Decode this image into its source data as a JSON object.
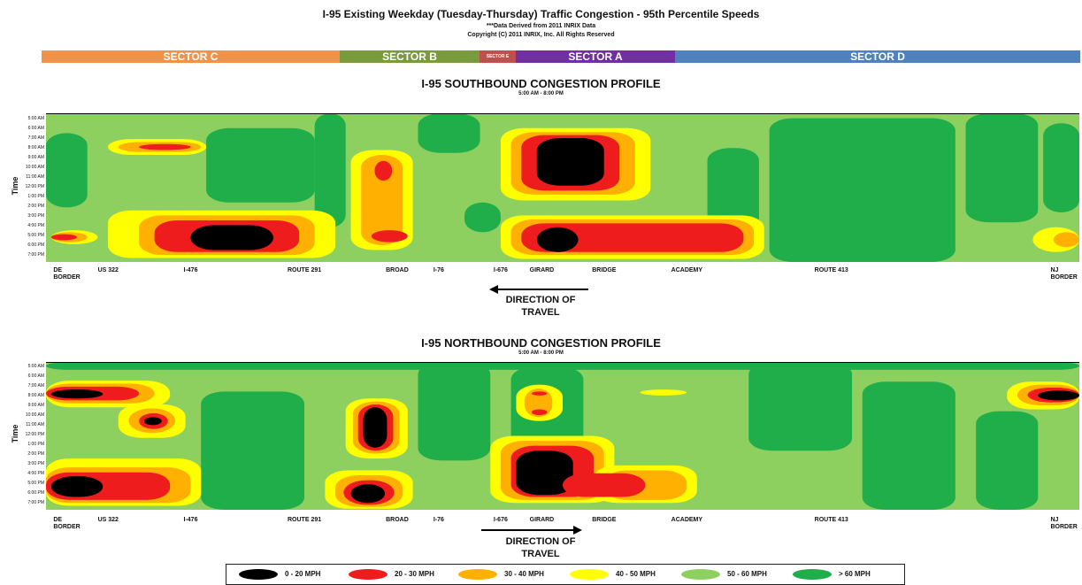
{
  "header": {
    "title": "I-95 Existing Weekday (Tuesday-Thursday) Traffic Congestion - 95th Percentile Speeds",
    "source_note": "***Data Derived from 2011 INRIX Data",
    "copyright": "Copyright (C) 2011 INRIX, Inc. All Rights Reserved"
  },
  "sectors": [
    {
      "label": "SECTOR C",
      "color": "#f0934a"
    },
    {
      "label": "SECTOR B",
      "color": "#7a9a3e"
    },
    {
      "label": "SECTOR E",
      "color": "#c0504d"
    },
    {
      "label": "SECTOR A",
      "color": "#7030a0"
    },
    {
      "label": "SECTOR D",
      "color": "#4f81bd"
    }
  ],
  "palette": {
    "0-20": "#000000",
    "20-30": "#ee1c1c",
    "30-40": "#ffb000",
    "40-50": "#ffff00",
    "50-60": "#8ed060",
    "60+": "#1fae4a"
  },
  "chart_data": [
    {
      "type": "heatmap",
      "title": "I-95 SOUTHBOUND CONGESTION PROFILE",
      "subtitle": "5:00 AM - 8:00 PM",
      "ylabel": "Time",
      "y_ticks": [
        "5:00 AM",
        "6:00 AM",
        "7:00 AM",
        "8:00 AM",
        "9:00 AM",
        "10:00 AM",
        "11:00 AM",
        "12:00 PM",
        "1:00 PM",
        "2:00 PM",
        "3:00 PM",
        "4:00 PM",
        "5:00 PM",
        "6:00 PM",
        "7:00 PM"
      ],
      "locations": [
        {
          "label": "DE BORDER",
          "line1": "DE",
          "line2": "BORDER",
          "pos": 0.02
        },
        {
          "label": "US 322",
          "line1": "US 322",
          "line2": "",
          "pos": 0.06
        },
        {
          "label": "I-476",
          "line1": "I-476",
          "line2": "",
          "pos": 0.14
        },
        {
          "label": "ROUTE 291",
          "line1": "ROUTE 291",
          "line2": "",
          "pos": 0.25
        },
        {
          "label": "BROAD",
          "line1": "BROAD",
          "line2": "",
          "pos": 0.34
        },
        {
          "label": "I-76",
          "line1": "I-76",
          "line2": "",
          "pos": 0.38
        },
        {
          "label": "I-676",
          "line1": "I-676",
          "line2": "",
          "pos": 0.44
        },
        {
          "label": "GIRARD",
          "line1": "GIRARD",
          "line2": "",
          "pos": 0.48
        },
        {
          "label": "BRIDGE",
          "line1": "BRIDGE",
          "line2": "",
          "pos": 0.54
        },
        {
          "label": "ACADEMY",
          "line1": "ACADEMY",
          "line2": "",
          "pos": 0.62
        },
        {
          "label": "ROUTE 413",
          "line1": "ROUTE 413",
          "line2": "",
          "pos": 0.76
        },
        {
          "label": "NJ BORDER",
          "line1": "NJ",
          "line2": "BORDER",
          "pos": 0.985
        }
      ],
      "direction": {
        "line1": "DIRECTION OF",
        "line2": "TRAVEL",
        "arrow": "left"
      },
      "background": "50-60",
      "zones": [
        {
          "speed": "60+",
          "x": [
            0.0,
            0.04
          ],
          "t": [
            7.0,
            14.5
          ]
        },
        {
          "speed": "60+",
          "x": [
            0.155,
            0.26
          ],
          "t": [
            6.5,
            14.0
          ]
        },
        {
          "speed": "60+",
          "x": [
            0.26,
            0.29
          ],
          "t": [
            5.0,
            16.5
          ]
        },
        {
          "speed": "60+",
          "x": [
            0.36,
            0.42
          ],
          "t": [
            5.0,
            9.0
          ]
        },
        {
          "speed": "60+",
          "x": [
            0.405,
            0.44
          ],
          "t": [
            14.0,
            17.0
          ]
        },
        {
          "speed": "60+",
          "x": [
            0.64,
            0.69
          ],
          "t": [
            8.5,
            17.5
          ]
        },
        {
          "speed": "60+",
          "x": [
            0.7,
            0.88
          ],
          "t": [
            5.5,
            20.0
          ]
        },
        {
          "speed": "60+",
          "x": [
            0.89,
            0.96
          ],
          "t": [
            5.0,
            16.0
          ]
        },
        {
          "speed": "60+",
          "x": [
            0.965,
            1.0
          ],
          "t": [
            6.0,
            15.0
          ]
        },
        {
          "speed": "40-50",
          "x": [
            0.06,
            0.155
          ],
          "t": [
            7.6,
            9.2
          ]
        },
        {
          "speed": "30-40",
          "x": [
            0.07,
            0.15
          ],
          "t": [
            7.9,
            8.9
          ]
        },
        {
          "speed": "20-30",
          "x": [
            0.09,
            0.14
          ],
          "t": [
            8.1,
            8.7
          ]
        },
        {
          "speed": "40-50",
          "x": [
            0.005,
            0.05
          ],
          "t": [
            16.8,
            18.2
          ]
        },
        {
          "speed": "30-40",
          "x": [
            0.005,
            0.04
          ],
          "t": [
            17.0,
            18.0
          ]
        },
        {
          "speed": "20-30",
          "x": [
            0.005,
            0.03
          ],
          "t": [
            17.2,
            17.8
          ]
        },
        {
          "speed": "40-50",
          "x": [
            0.06,
            0.28
          ],
          "t": [
            14.8,
            19.6
          ]
        },
        {
          "speed": "30-40",
          "x": [
            0.09,
            0.26
          ],
          "t": [
            15.3,
            19.3
          ]
        },
        {
          "speed": "20-30",
          "x": [
            0.105,
            0.245
          ],
          "t": [
            15.8,
            19.0
          ]
        },
        {
          "speed": "0-20",
          "x": [
            0.14,
            0.22
          ],
          "t": [
            16.3,
            18.8
          ]
        },
        {
          "speed": "40-50",
          "x": [
            0.295,
            0.355
          ],
          "t": [
            8.7,
            18.8
          ]
        },
        {
          "speed": "30-40",
          "x": [
            0.305,
            0.345
          ],
          "t": [
            9.2,
            18.3
          ]
        },
        {
          "speed": "20-30",
          "x": [
            0.318,
            0.335
          ],
          "t": [
            9.8,
            11.8
          ]
        },
        {
          "speed": "20-30",
          "x": [
            0.315,
            0.35
          ],
          "t": [
            16.8,
            18.0
          ]
        },
        {
          "speed": "40-50",
          "x": [
            0.44,
            0.585
          ],
          "t": [
            6.5,
            13.8
          ]
        },
        {
          "speed": "30-40",
          "x": [
            0.45,
            0.57
          ],
          "t": [
            6.9,
            13.2
          ]
        },
        {
          "speed": "20-30",
          "x": [
            0.46,
            0.555
          ],
          "t": [
            7.2,
            12.8
          ]
        },
        {
          "speed": "0-20",
          "x": [
            0.475,
            0.54
          ],
          "t": [
            7.5,
            12.3
          ]
        },
        {
          "speed": "40-50",
          "x": [
            0.44,
            0.695
          ],
          "t": [
            15.3,
            19.7
          ]
        },
        {
          "speed": "30-40",
          "x": [
            0.45,
            0.685
          ],
          "t": [
            15.7,
            19.3
          ]
        },
        {
          "speed": "20-30",
          "x": [
            0.46,
            0.675
          ],
          "t": [
            16.1,
            19.0
          ]
        },
        {
          "speed": "0-20",
          "x": [
            0.475,
            0.515
          ],
          "t": [
            16.5,
            19.0
          ]
        },
        {
          "speed": "40-50",
          "x": [
            0.955,
            1.0
          ],
          "t": [
            16.5,
            19.0
          ]
        },
        {
          "speed": "30-40",
          "x": [
            0.975,
            1.0
          ],
          "t": [
            17.0,
            18.5
          ]
        }
      ]
    },
    {
      "type": "heatmap",
      "title": "I-95 NORTHBOUND CONGESTION PROFILE",
      "subtitle": "5:00 AM - 8:00 PM",
      "ylabel": "Time",
      "y_ticks": [
        "5:00 AM",
        "6:00 AM",
        "7:00 AM",
        "8:00 AM",
        "9:00 AM",
        "10:00 AM",
        "11:00 AM",
        "12:00 PM",
        "1:00 PM",
        "2:00 PM",
        "3:00 PM",
        "4:00 PM",
        "5:00 PM",
        "6:00 PM",
        "7:00 PM"
      ],
      "locations": [
        {
          "label": "DE BORDER",
          "line1": "DE",
          "line2": "BORDER",
          "pos": 0.02
        },
        {
          "label": "US 322",
          "line1": "US 322",
          "line2": "",
          "pos": 0.06
        },
        {
          "label": "I-476",
          "line1": "I-476",
          "line2": "",
          "pos": 0.14
        },
        {
          "label": "ROUTE 291",
          "line1": "ROUTE 291",
          "line2": "",
          "pos": 0.25
        },
        {
          "label": "BROAD",
          "line1": "BROAD",
          "line2": "",
          "pos": 0.34
        },
        {
          "label": "I-76",
          "line1": "I-76",
          "line2": "",
          "pos": 0.38
        },
        {
          "label": "I-676",
          "line1": "I-676",
          "line2": "",
          "pos": 0.44
        },
        {
          "label": "GIRARD",
          "line1": "GIRARD",
          "line2": "",
          "pos": 0.48
        },
        {
          "label": "BRIDGE",
          "line1": "BRIDGE",
          "line2": "",
          "pos": 0.54
        },
        {
          "label": "ACADEMY",
          "line1": "ACADEMY",
          "line2": "",
          "pos": 0.62
        },
        {
          "label": "ROUTE 413",
          "line1": "ROUTE 413",
          "line2": "",
          "pos": 0.76
        },
        {
          "label": "NJ BORDER",
          "line1": "NJ",
          "line2": "BORDER",
          "pos": 0.985
        }
      ],
      "direction": {
        "line1": "DIRECTION OF",
        "line2": "TRAVEL",
        "arrow": "right"
      },
      "background": "50-60",
      "zones": [
        {
          "speed": "60+",
          "x": [
            0.15,
            0.25
          ],
          "t": [
            8.0,
            20.0
          ]
        },
        {
          "speed": "60+",
          "x": [
            0.36,
            0.43
          ],
          "t": [
            5.0,
            15.0
          ]
        },
        {
          "speed": "60+",
          "x": [
            0.45,
            0.52
          ],
          "t": [
            5.5,
            14.5
          ]
        },
        {
          "speed": "60+",
          "x": [
            0.68,
            0.78
          ],
          "t": [
            5.0,
            14.0
          ]
        },
        {
          "speed": "60+",
          "x": [
            0.79,
            0.88
          ],
          "t": [
            7.0,
            20.0
          ]
        },
        {
          "speed": "60+",
          "x": [
            0.9,
            0.96
          ],
          "t": [
            10.0,
            20.0
          ]
        },
        {
          "speed": "60+",
          "x": [
            0.0,
            1.0
          ],
          "t": [
            5.0,
            5.8
          ]
        },
        {
          "speed": "40-50",
          "x": [
            0.0,
            0.12
          ],
          "t": [
            6.9,
            9.6
          ]
        },
        {
          "speed": "30-40",
          "x": [
            0.0,
            0.105
          ],
          "t": [
            7.2,
            9.2
          ]
        },
        {
          "speed": "20-30",
          "x": [
            0.0,
            0.09
          ],
          "t": [
            7.5,
            8.9
          ]
        },
        {
          "speed": "0-20",
          "x": [
            0.005,
            0.055
          ],
          "t": [
            7.8,
            8.7
          ]
        },
        {
          "speed": "40-50",
          "x": [
            0.07,
            0.135
          ],
          "t": [
            9.3,
            12.7
          ]
        },
        {
          "speed": "30-40",
          "x": [
            0.08,
            0.125
          ],
          "t": [
            9.7,
            12.2
          ]
        },
        {
          "speed": "20-30",
          "x": [
            0.09,
            0.118
          ],
          "t": [
            10.2,
            11.8
          ]
        },
        {
          "speed": "0-20",
          "x": [
            0.095,
            0.112
          ],
          "t": [
            10.6,
            11.4
          ]
        },
        {
          "speed": "40-50",
          "x": [
            0.0,
            0.15
          ],
          "t": [
            14.8,
            19.6
          ]
        },
        {
          "speed": "30-40",
          "x": [
            0.0,
            0.14
          ],
          "t": [
            15.7,
            19.3
          ]
        },
        {
          "speed": "20-30",
          "x": [
            0.0,
            0.12
          ],
          "t": [
            16.2,
            19.0
          ]
        },
        {
          "speed": "0-20",
          "x": [
            0.005,
            0.055
          ],
          "t": [
            16.6,
            18.7
          ]
        },
        {
          "speed": "40-50",
          "x": [
            0.29,
            0.35
          ],
          "t": [
            8.7,
            14.8
          ]
        },
        {
          "speed": "30-40",
          "x": [
            0.297,
            0.342
          ],
          "t": [
            9.0,
            14.3
          ]
        },
        {
          "speed": "20-30",
          "x": [
            0.302,
            0.336
          ],
          "t": [
            9.3,
            14.0
          ]
        },
        {
          "speed": "0-20",
          "x": [
            0.307,
            0.33
          ],
          "t": [
            9.6,
            13.7
          ]
        },
        {
          "speed": "40-50",
          "x": [
            0.27,
            0.355
          ],
          "t": [
            16.0,
            19.9
          ]
        },
        {
          "speed": "30-40",
          "x": [
            0.28,
            0.345
          ],
          "t": [
            16.5,
            19.7
          ]
        },
        {
          "speed": "20-30",
          "x": [
            0.288,
            0.337
          ],
          "t": [
            17.0,
            19.5
          ]
        },
        {
          "speed": "0-20",
          "x": [
            0.295,
            0.328
          ],
          "t": [
            17.4,
            19.3
          ]
        },
        {
          "speed": "40-50",
          "x": [
            0.43,
            0.55
          ],
          "t": [
            12.5,
            19.3
          ]
        },
        {
          "speed": "30-40",
          "x": [
            0.44,
            0.54
          ],
          "t": [
            13.0,
            19.0
          ]
        },
        {
          "speed": "20-30",
          "x": [
            0.45,
            0.53
          ],
          "t": [
            13.5,
            18.7
          ]
        },
        {
          "speed": "0-20",
          "x": [
            0.455,
            0.51
          ],
          "t": [
            14.0,
            18.5
          ]
        },
        {
          "speed": "40-50",
          "x": [
            0.455,
            0.5
          ],
          "t": [
            7.3,
            11.0
          ]
        },
        {
          "speed": "30-40",
          "x": [
            0.463,
            0.49
          ],
          "t": [
            7.7,
            10.6
          ]
        },
        {
          "speed": "20-30",
          "x": [
            0.47,
            0.485
          ],
          "t": [
            8.0,
            8.4
          ]
        },
        {
          "speed": "20-30",
          "x": [
            0.47,
            0.485
          ],
          "t": [
            9.8,
            10.4
          ]
        },
        {
          "speed": "40-50",
          "x": [
            0.53,
            0.63
          ],
          "t": [
            15.5,
            19.3
          ]
        },
        {
          "speed": "30-40",
          "x": [
            0.54,
            0.62
          ],
          "t": [
            16.0,
            19.0
          ]
        },
        {
          "speed": "20-30",
          "x": [
            0.5,
            0.58
          ],
          "t": [
            16.3,
            18.7
          ]
        },
        {
          "speed": "40-50",
          "x": [
            0.575,
            0.62
          ],
          "t": [
            7.8,
            8.4
          ]
        },
        {
          "speed": "40-50",
          "x": [
            0.93,
            1.0
          ],
          "t": [
            7.0,
            9.8
          ]
        },
        {
          "speed": "30-40",
          "x": [
            0.94,
            1.0
          ],
          "t": [
            7.3,
            9.4
          ]
        },
        {
          "speed": "20-30",
          "x": [
            0.95,
            1.0
          ],
          "t": [
            7.6,
            9.1
          ]
        },
        {
          "speed": "0-20",
          "x": [
            0.96,
            1.0
          ],
          "t": [
            7.9,
            8.9
          ]
        }
      ]
    }
  ],
  "legend": [
    {
      "label": "0 - 20 MPH",
      "speed": "0-20"
    },
    {
      "label": "20 - 30 MPH",
      "speed": "20-30"
    },
    {
      "label": "30 - 40 MPH",
      "speed": "30-40"
    },
    {
      "label": "40 - 50 MPH",
      "speed": "40-50"
    },
    {
      "label": "50 - 60 MPH",
      "speed": "50-60"
    },
    {
      "label": "> 60 MPH",
      "speed": "60+"
    }
  ]
}
